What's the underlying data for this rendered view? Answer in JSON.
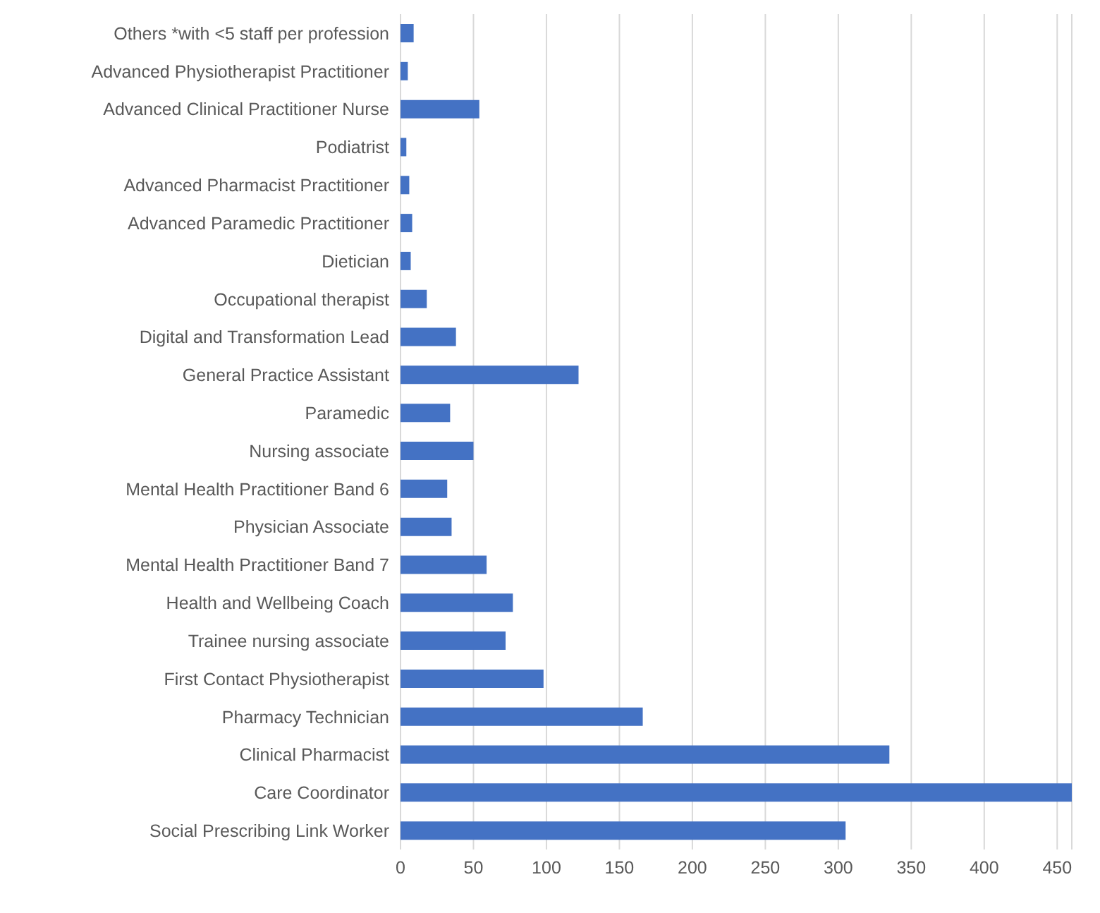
{
  "chart_data": {
    "type": "bar",
    "orientation": "horizontal",
    "categories": [
      "Others *with <5 staff per profession",
      "Advanced Physiotherapist Practitioner",
      "Advanced Clinical Practitioner Nurse",
      "Podiatrist",
      "Advanced Pharmacist Practitioner",
      "Advanced Paramedic Practitioner",
      "Dietician",
      "Occupational therapist",
      "Digital and Transformation Lead",
      "General Practice Assistant",
      "Paramedic",
      "Nursing associate",
      "Mental Health Practitioner Band 6",
      "Physician Associate",
      "Mental Health Practitioner Band 7",
      "Health and Wellbeing Coach",
      "Trainee nursing associate",
      "First Contact Physiotherapist",
      "Pharmacy Technician",
      "Clinical Pharmacist",
      "Care Coordinator",
      "Social Prescribing Link Worker"
    ],
    "values": [
      9,
      5,
      54,
      4,
      6,
      8,
      7,
      18,
      38,
      122,
      34,
      50,
      32,
      35,
      59,
      77,
      72,
      98,
      166,
      335,
      460,
      305
    ],
    "color": "#4472c4",
    "xlim": [
      0,
      460
    ],
    "xticks": [
      0,
      50,
      100,
      150,
      200,
      250,
      300,
      350,
      400,
      450
    ],
    "grid": "x"
  }
}
